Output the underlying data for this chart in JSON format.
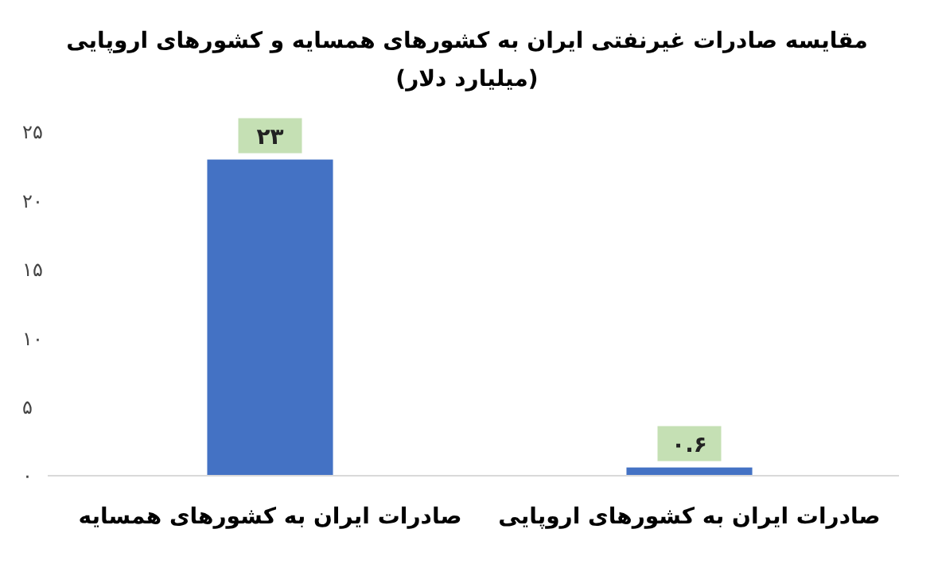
{
  "chart_data": {
    "type": "bar",
    "title": "مقایسه صادرات غیرنفتی ایران به کشورهای همسایه و کشورهای اروپایی",
    "subtitle": "(میلیارد دلار)",
    "categories": [
      "صادرات ایران به کشورهای همسایه",
      "صادرات ایران به کشورهای اروپایی"
    ],
    "values": [
      23,
      0.6
    ],
    "color": "#4472c4",
    "value_labels": [
      "۲۳",
      "۰.۶"
    ],
    "ylim": [
      0,
      25
    ],
    "yticks": [
      {
        "value": 0,
        "label": "۰"
      },
      {
        "value": 5,
        "label": "۵"
      },
      {
        "value": 10,
        "label": "۱۰"
      },
      {
        "value": 15,
        "label": "۱۵"
      },
      {
        "value": 20,
        "label": "۲۰"
      },
      {
        "value": 25,
        "label": "۲۵"
      }
    ],
    "grid": false
  }
}
